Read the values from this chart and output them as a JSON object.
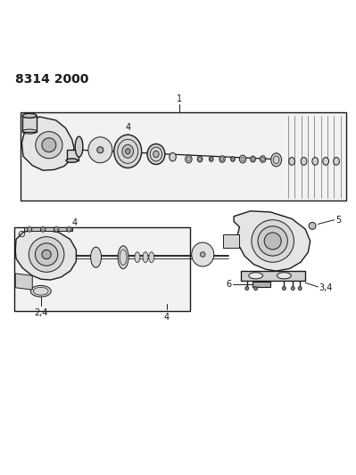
{
  "title": "8314 2000",
  "background_color": "#ffffff",
  "line_color": "#1a1a1a",
  "figsize": [
    3.99,
    5.33
  ],
  "dpi": 100
}
